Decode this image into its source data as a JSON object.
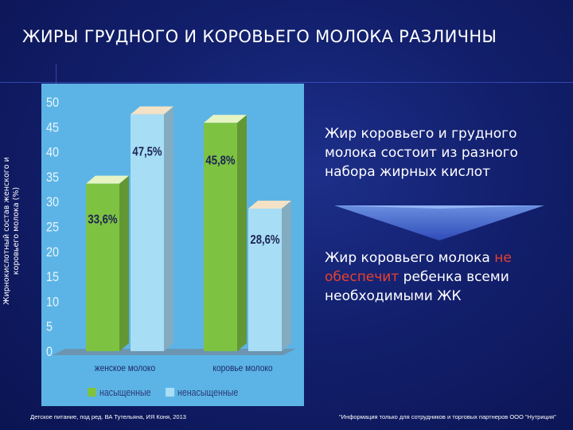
{
  "slide": {
    "title": "ЖИРЫ ГРУДНОГО И КОРОВЬЕГО  МОЛОКА РАЗЛИЧНЫ",
    "bullet1": "Жир коровьего и грудного молока состоит из разного набора жирных кислот",
    "bullet2_part1": "Жир коровьего молока ",
    "bullet2_highlight": "не обеспечит",
    "bullet2_part2": " ребенка всеми необходимыми ЖК",
    "footer_left": "Детское питание, под ред. ВА Тутельяна, ИЯ Коня, 2013",
    "footer_right": "\"Информация только для сотрудников и торговых партнеров ООО \"Нутриция\"",
    "colors": {
      "background": "#121f6c",
      "chart_panel": "#5cb4e6",
      "saturated": "#7ec242",
      "unsaturated": "#a8ddf6",
      "highlight": "#e8412d"
    }
  },
  "chart_data": {
    "type": "bar",
    "title": "",
    "ylabel": "Жирнокислотный состав женского и коровьего молока (%)",
    "xlabel": "",
    "ylim": [
      0,
      50
    ],
    "yticks": [
      "0",
      "5",
      "10",
      "15",
      "20",
      "25",
      "30",
      "35",
      "40",
      "45",
      "50"
    ],
    "categories": [
      "женское молоко",
      "коровье молоко"
    ],
    "series": [
      {
        "name": "насыщенные",
        "color": "#7ec242",
        "values": [
          33.6,
          45.8
        ],
        "labels": [
          "33,6%",
          "45,8%"
        ]
      },
      {
        "name": "ненасыщенные",
        "color": "#a8ddf6",
        "values": [
          47.5,
          28.6
        ],
        "labels": [
          "47,5%",
          "28,6%"
        ]
      }
    ],
    "legend": "bottom",
    "grid": false
  }
}
